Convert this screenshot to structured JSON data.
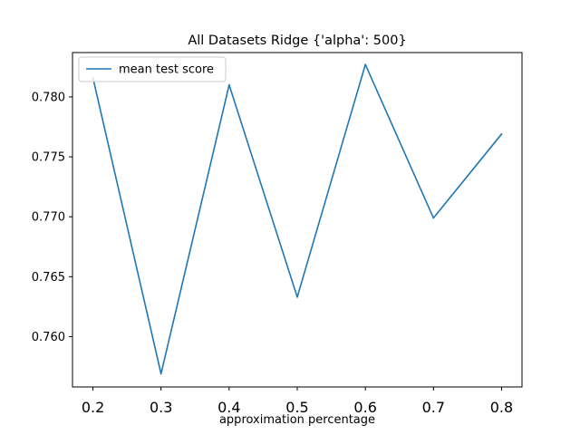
{
  "chart_data": {
    "type": "line",
    "title": "All Datasets Ridge {'alpha': 500}",
    "xlabel": "approximation percentage",
    "ylabel": "",
    "x": [
      0.2,
      0.3,
      0.4,
      0.5,
      0.6,
      0.7,
      0.8
    ],
    "x_tick_labels": [
      "0.2",
      "0.3",
      "0.4",
      "0.5",
      "0.6",
      "0.7",
      "0.8"
    ],
    "y_ticks": [
      0.76,
      0.765,
      0.77,
      0.775,
      0.78
    ],
    "y_tick_labels": [
      "0.760",
      "0.765",
      "0.770",
      "0.775",
      "0.780"
    ],
    "xlim": [
      0.17,
      0.83
    ],
    "ylim": [
      0.7558,
      0.7837
    ],
    "grid": false,
    "legend_placement": "top-left",
    "series": [
      {
        "name": "mean test score",
        "color": "#1f77b4",
        "values": [
          0.7816,
          0.7569,
          0.781,
          0.7633,
          0.7827,
          0.7699,
          0.7769
        ]
      }
    ]
  }
}
